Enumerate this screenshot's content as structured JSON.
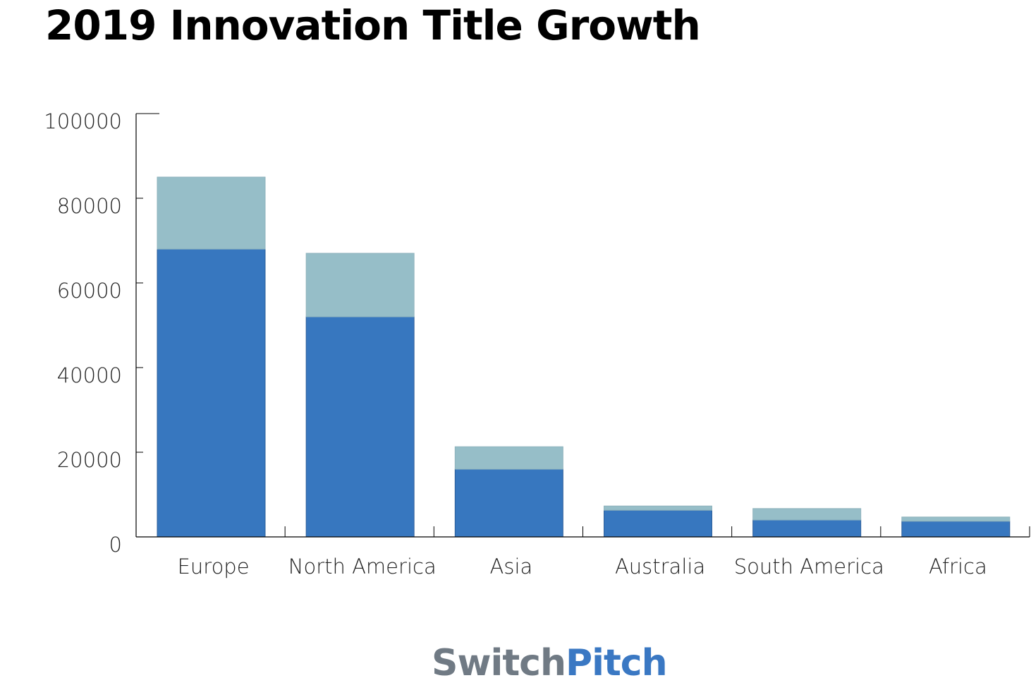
{
  "chart_data": {
    "type": "bar",
    "stacked": true,
    "title": "2019 Innovation Title Growth",
    "categories": [
      "Europe",
      "North America",
      "Asia",
      "Australia",
      "South America",
      "Africa"
    ],
    "series": [
      {
        "values": [
          68000,
          52000,
          16000,
          6300,
          4000,
          3700
        ],
        "color": "#3777bf"
      },
      {
        "values": [
          17000,
          15000,
          5300,
          1000,
          2700,
          1000
        ],
        "color": "#96bec8"
      }
    ],
    "ylim": [
      0,
      100000
    ],
    "yticks": [
      0,
      20000,
      40000,
      60000,
      80000,
      100000
    ],
    "grid": false,
    "xlabel": "",
    "ylabel": ""
  },
  "logo": {
    "part1": "Switch",
    "part2": "Pitch"
  }
}
